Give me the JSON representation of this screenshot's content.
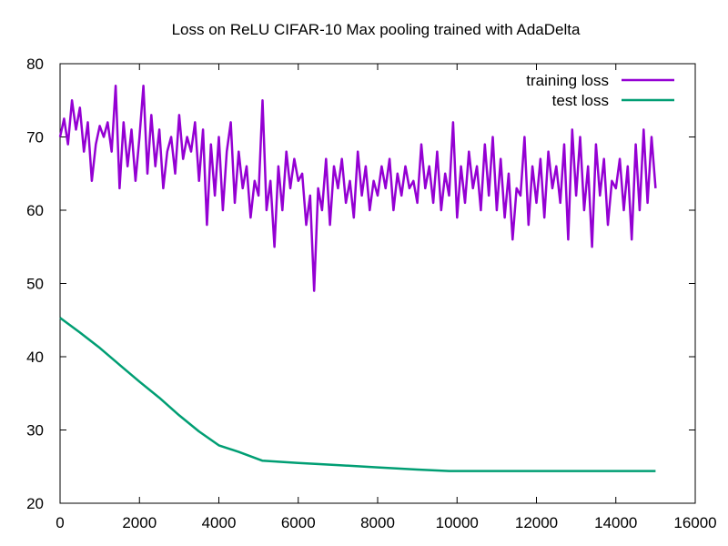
{
  "chart_data": {
    "type": "line",
    "title": "Loss on ReLU CIFAR-10 Max pooling trained with AdaDelta",
    "xlabel": "",
    "ylabel": "",
    "xlim": [
      0,
      16000
    ],
    "ylim": [
      20,
      80
    ],
    "xticks": [
      0,
      2000,
      4000,
      6000,
      8000,
      10000,
      12000,
      14000,
      16000
    ],
    "yticks": [
      20,
      30,
      40,
      50,
      60,
      70,
      80
    ],
    "grid": false,
    "legend_position": "top-right",
    "series": [
      {
        "name": "training loss",
        "color": "#9400d3",
        "x": [
          0,
          100,
          200,
          300,
          400,
          500,
          600,
          700,
          800,
          900,
          1000,
          1100,
          1200,
          1300,
          1400,
          1500,
          1600,
          1700,
          1800,
          1900,
          2000,
          2100,
          2200,
          2300,
          2400,
          2500,
          2600,
          2700,
          2800,
          2900,
          3000,
          3100,
          3200,
          3300,
          3400,
          3500,
          3600,
          3700,
          3800,
          3900,
          4000,
          4100,
          4200,
          4300,
          4400,
          4500,
          4600,
          4700,
          4800,
          4900,
          5000,
          5100,
          5200,
          5300,
          5400,
          5500,
          5600,
          5700,
          5800,
          5900,
          6000,
          6100,
          6200,
          6300,
          6400,
          6500,
          6600,
          6700,
          6800,
          6900,
          7000,
          7100,
          7200,
          7300,
          7400,
          7500,
          7600,
          7700,
          7800,
          7900,
          8000,
          8100,
          8200,
          8300,
          8400,
          8500,
          8600,
          8700,
          8800,
          8900,
          9000,
          9100,
          9200,
          9300,
          9400,
          9500,
          9600,
          9700,
          9800,
          9900,
          10000,
          10100,
          10200,
          10300,
          10400,
          10500,
          10600,
          10700,
          10800,
          10900,
          11000,
          11100,
          11200,
          11300,
          11400,
          11500,
          11600,
          11700,
          11800,
          11900,
          12000,
          12100,
          12200,
          12300,
          12400,
          12500,
          12600,
          12700,
          12800,
          12900,
          13000,
          13100,
          13200,
          13300,
          13400,
          13500,
          13600,
          13700,
          13800,
          13900,
          14000,
          14100,
          14200,
          14300,
          14400,
          14500,
          14600,
          14700,
          14800,
          14900,
          15000
        ],
        "values": [
          70,
          72.5,
          69,
          75,
          71,
          74,
          68,
          72,
          64,
          69,
          71.5,
          70,
          72,
          68,
          77,
          63,
          72,
          66,
          71,
          64,
          70,
          77,
          65,
          73,
          66,
          71,
          63,
          68,
          70,
          65,
          73,
          67,
          70,
          68,
          72,
          64,
          71,
          58,
          69,
          62,
          70,
          60,
          68,
          72,
          61,
          68,
          63,
          66,
          59,
          64,
          62,
          75,
          60,
          64,
          55,
          66,
          60,
          68,
          63,
          67,
          64,
          65,
          58,
          62,
          49,
          63,
          60,
          67,
          58,
          66,
          63,
          67,
          61,
          64,
          59,
          68,
          62,
          66,
          60,
          64,
          62,
          66,
          63,
          67,
          60,
          65,
          62,
          66,
          63,
          64,
          61,
          69,
          63,
          66,
          61,
          68,
          60,
          65,
          62,
          72,
          59,
          66,
          61,
          68,
          63,
          66,
          60,
          69,
          62,
          70,
          60,
          67,
          59,
          65,
          56,
          63,
          62,
          70,
          58,
          66,
          61,
          67,
          59,
          68,
          63,
          66,
          61,
          69,
          56,
          71,
          62,
          70,
          60,
          66,
          55,
          69,
          62,
          67,
          58,
          64,
          63,
          67,
          60,
          66,
          56,
          69,
          60,
          71,
          61,
          70,
          63
        ]
      },
      {
        "name": "test loss",
        "color": "#009e73",
        "x": [
          0,
          500,
          1000,
          1500,
          2000,
          2500,
          3000,
          3500,
          4000,
          4500,
          5000,
          5100,
          6000,
          7000,
          8000,
          9000,
          9800,
          10500,
          11000,
          12000,
          13000,
          14000,
          15000
        ],
        "values": [
          45.3,
          43.3,
          41.2,
          38.9,
          36.6,
          34.4,
          32.0,
          29.8,
          27.9,
          27.0,
          26.0,
          25.8,
          25.5,
          25.2,
          24.9,
          24.6,
          24.4,
          24.4,
          24.4,
          24.4,
          24.4,
          24.4,
          24.4
        ]
      }
    ]
  }
}
